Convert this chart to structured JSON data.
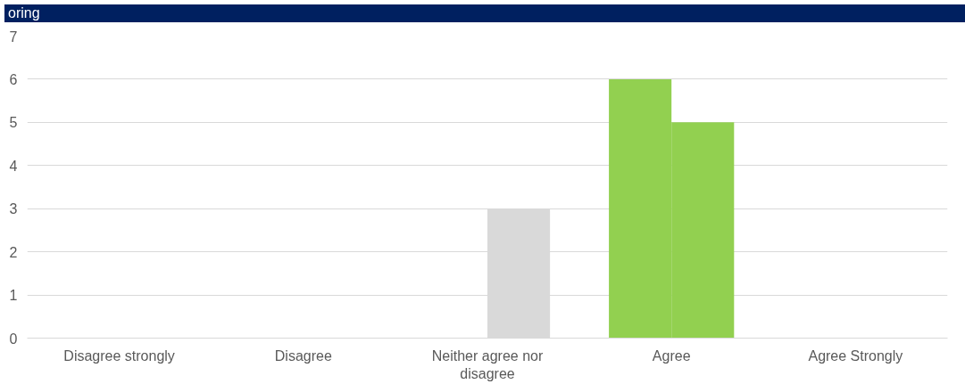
{
  "chart_data": {
    "type": "bar",
    "title": "oring",
    "categories": [
      "Disagree strongly",
      "Disagree",
      "Neither agree nor disagree",
      "Agree",
      "Agree Strongly"
    ],
    "series": [
      {
        "colors": [
          "#92d050",
          "#92d050",
          "#d9d9d9",
          "#92d050",
          "#92d050"
        ],
        "values": [
          0,
          0,
          0,
          6,
          0
        ]
      },
      {
        "colors": [
          "#92d050",
          "#92d050",
          "#d9d9d9",
          "#92d050",
          "#92d050"
        ],
        "values": [
          0,
          0,
          3,
          5,
          0
        ]
      }
    ],
    "ylim": [
      0,
      7
    ],
    "yticks": [
      0,
      1,
      2,
      3,
      4,
      5,
      6,
      7
    ],
    "grid": "y"
  }
}
